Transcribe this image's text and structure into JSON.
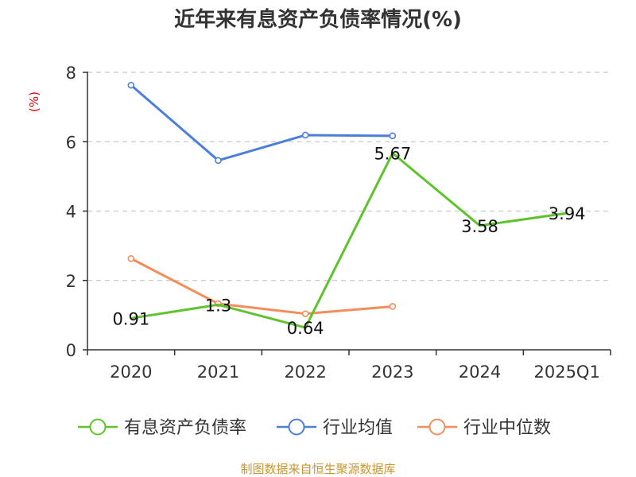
{
  "chart_data": {
    "type": "line",
    "title": "近年来有息资产负债率情况(%)",
    "ylabel": "(%)",
    "xlabel": "",
    "categories": [
      "2020",
      "2021",
      "2022",
      "2023",
      "2024",
      "2025Q1"
    ],
    "ylim": [
      0,
      8
    ],
    "yticks": [
      0,
      2,
      4,
      6,
      8
    ],
    "grid": "horizontal-dashed",
    "legend_placement": "bottom",
    "series": [
      {
        "name": "有息资产负债率",
        "color": "#5ec42d",
        "values": [
          0.91,
          1.3,
          0.64,
          5.67,
          3.58,
          3.94
        ],
        "labels": [
          "0.91",
          "1.3",
          "0.64",
          "5.67",
          "3.58",
          "3.94"
        ]
      },
      {
        "name": "行业均值",
        "color": "#4c7fdc",
        "values": [
          7.63,
          5.46,
          6.19,
          6.17,
          null,
          null
        ]
      },
      {
        "name": "行业中位数",
        "color": "#f28e5b",
        "values": [
          2.63,
          1.33,
          1.04,
          1.25,
          null,
          null
        ]
      }
    ]
  },
  "footer": {
    "source": "制图数据来自恒生聚源数据库"
  }
}
